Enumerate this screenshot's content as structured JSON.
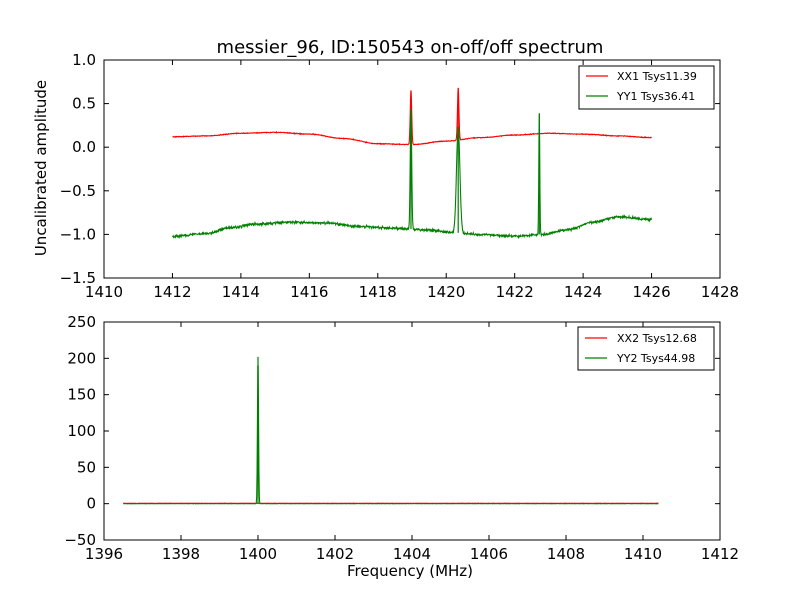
{
  "chart_data": [
    {
      "type": "line",
      "title": "messier_96, ID:150543 on-off/off spectrum",
      "xlabel": "",
      "ylabel": "Uncalibrated amplitude",
      "xlim": [
        1410,
        1428
      ],
      "ylim": [
        -1.5,
        1.0
      ],
      "xticks": [
        1410,
        1412,
        1414,
        1416,
        1418,
        1420,
        1422,
        1424,
        1426,
        1428
      ],
      "xtick_labels": [
        "1410",
        "1412",
        "1414",
        "1416",
        "1418",
        "1420",
        "1422",
        "1424",
        "1426",
        "1428"
      ],
      "yticks": [
        -1.5,
        -1.0,
        -0.5,
        0.0,
        0.5,
        1.0
      ],
      "ytick_labels": [
        "−1.5",
        "−1.0",
        "−0.5",
        "0.0",
        "0.5",
        "1.0"
      ],
      "legend_position": "top-right",
      "series": [
        {
          "name": "XX1 Tsys11.39",
          "color": "#ff0000",
          "noise": 0.006,
          "points": [
            [
              1412,
              0.12
            ],
            [
              1413,
              0.13
            ],
            [
              1414,
              0.16
            ],
            [
              1415,
              0.17
            ],
            [
              1416,
              0.15
            ],
            [
              1417,
              0.1
            ],
            [
              1418,
              0.04
            ],
            [
              1419,
              0.03
            ],
            [
              1420,
              0.07
            ],
            [
              1421,
              0.11
            ],
            [
              1422,
              0.14
            ],
            [
              1423,
              0.16
            ],
            [
              1424,
              0.15
            ],
            [
              1425,
              0.13
            ],
            [
              1426,
              0.11
            ]
          ],
          "spikes": [
            {
              "x": 1418.97,
              "peak": 0.65,
              "width": 0.03
            },
            {
              "x": 1420.35,
              "peak": 0.68,
              "width": 0.03
            }
          ]
        },
        {
          "name": "YY1 Tsys36.41",
          "color": "#008000",
          "noise": 0.02,
          "points": [
            [
              1412,
              -1.02
            ],
            [
              1413,
              -0.99
            ],
            [
              1413.7,
              -0.92
            ],
            [
              1414.5,
              -0.88
            ],
            [
              1415.5,
              -0.86
            ],
            [
              1416.5,
              -0.87
            ],
            [
              1417.5,
              -0.91
            ],
            [
              1418.5,
              -0.93
            ],
            [
              1419.5,
              -0.95
            ],
            [
              1420.2,
              -0.98
            ],
            [
              1421,
              -1.0
            ],
            [
              1422,
              -1.02
            ],
            [
              1422.8,
              -1.0
            ],
            [
              1423.5,
              -0.95
            ],
            [
              1424.3,
              -0.86
            ],
            [
              1425,
              -0.8
            ],
            [
              1426,
              -0.83
            ]
          ],
          "spikes": [
            {
              "x": 1418.97,
              "peak": 0.44,
              "width": 0.03
            },
            {
              "x": 1420.35,
              "peak": 0.23,
              "width": 0.07
            },
            {
              "x": 1422.72,
              "peak": 0.39,
              "width": 0.02
            }
          ]
        }
      ]
    },
    {
      "type": "line",
      "title": "",
      "xlabel": "Frequency (MHz)",
      "ylabel": "",
      "xlim": [
        1396,
        1412
      ],
      "ylim": [
        -50,
        250
      ],
      "xticks": [
        1396,
        1398,
        1400,
        1402,
        1404,
        1406,
        1408,
        1410,
        1412
      ],
      "xtick_labels": [
        "1396",
        "1398",
        "1400",
        "1402",
        "1404",
        "1406",
        "1408",
        "1410",
        "1412"
      ],
      "yticks": [
        -50,
        0,
        50,
        100,
        150,
        200,
        250
      ],
      "ytick_labels": [
        "−50",
        "0",
        "50",
        "100",
        "150",
        "200",
        "250"
      ],
      "legend_position": "top-right",
      "series": [
        {
          "name": "XX2 Tsys12.68",
          "color": "#ff0000",
          "noise": 0.3,
          "points": [
            [
              1396.5,
              0.5
            ],
            [
              1410.4,
              0.5
            ]
          ],
          "spikes": []
        },
        {
          "name": "YY2 Tsys44.98",
          "color": "#008000",
          "noise": 0.3,
          "points": [
            [
              1396.5,
              0
            ],
            [
              1410.4,
              0
            ]
          ],
          "spikes": [
            {
              "x": 1400.0,
              "peak": 202,
              "width": 0.02
            }
          ]
        }
      ]
    }
  ]
}
